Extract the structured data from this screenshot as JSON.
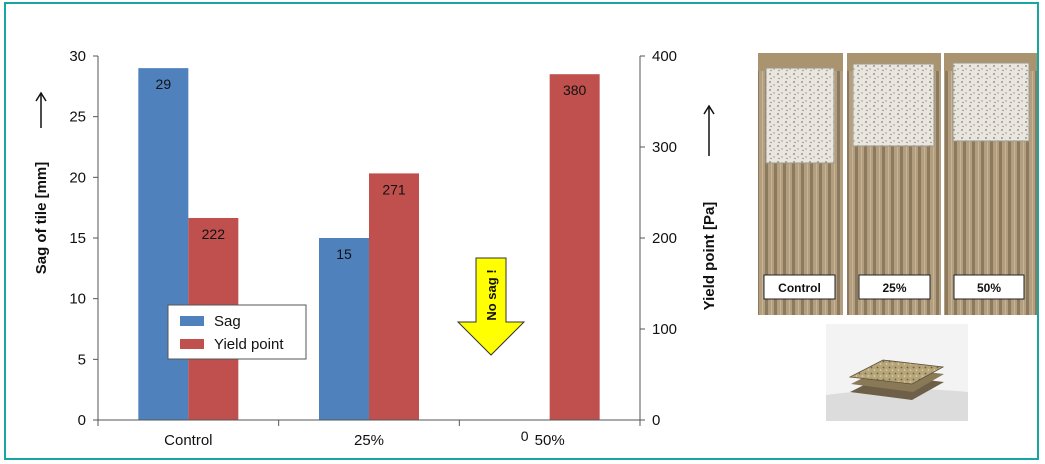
{
  "chart_data": {
    "type": "bar",
    "categories": [
      "Control",
      "25%",
      "50%"
    ],
    "series": [
      {
        "name": "Sag",
        "axis": "left",
        "color": "#4f81bd",
        "values": [
          29,
          15,
          0
        ],
        "labels": [
          "29",
          "15",
          "0"
        ]
      },
      {
        "name": "Yield point",
        "axis": "right",
        "color": "#c0504d",
        "values": [
          222,
          271,
          380
        ],
        "labels": [
          "222",
          "271",
          "380"
        ]
      }
    ],
    "ylabel": "Sag of tile [mm]",
    "ylim": [
      0,
      30
    ],
    "yticks": [
      "0",
      "5",
      "10",
      "15",
      "20",
      "25",
      "30"
    ],
    "y2label": "Yield point  [Pa]",
    "y2lim": [
      0,
      400
    ],
    "y2ticks": [
      "0",
      "100",
      "200",
      "300",
      "400"
    ],
    "annotation": "No sag !",
    "annotation_color": "#ffff00",
    "legend_position": "lower-left",
    "grid": false
  },
  "photos": {
    "labels": [
      "Control",
      "25%",
      "50%"
    ]
  }
}
